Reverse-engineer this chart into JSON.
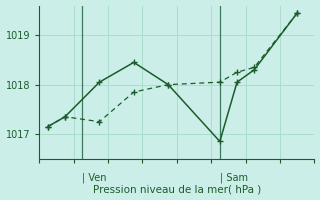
{
  "background_color": "#cceee8",
  "grid_color": "#aaddcc",
  "line_color": "#1a5c2a",
  "vline_color": "#3a7a5a",
  "xlabel": "Pression niveau de la mer( hPa )",
  "ylim": [
    1016.5,
    1019.6
  ],
  "yticks": [
    1017,
    1018,
    1019
  ],
  "xlim": [
    0,
    16
  ],
  "ven_x": 2.5,
  "sam_x": 10.5,
  "vline_positions": [
    2.5,
    10.5
  ],
  "num_hgrid": 5,
  "num_vgrid": 8,
  "line1_x": [
    0.5,
    1.5,
    3.5,
    5.5,
    7.5,
    10.5,
    11.5,
    12.5,
    15.0
  ],
  "line1_y": [
    1017.15,
    1017.35,
    1018.05,
    1018.45,
    1018.0,
    1016.85,
    1018.05,
    1018.3,
    1019.45
  ],
  "line2_x": [
    0.5,
    1.5,
    3.5,
    5.5,
    7.5,
    10.5,
    11.5,
    12.5,
    15.0
  ],
  "line2_y": [
    1017.15,
    1017.35,
    1017.25,
    1017.85,
    1018.0,
    1018.05,
    1018.25,
    1018.35,
    1019.45
  ]
}
